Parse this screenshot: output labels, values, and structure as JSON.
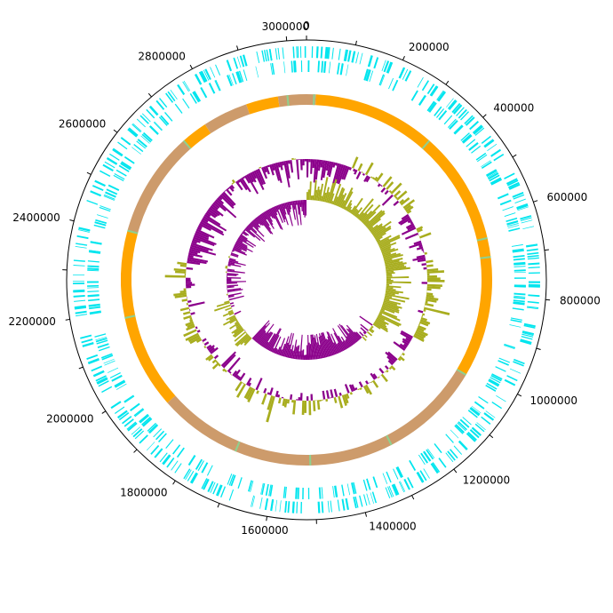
{
  "genome": {
    "length": 3040000,
    "tick_labels": [
      {
        "position": 0,
        "text": "0"
      },
      {
        "position": 200000,
        "text": "200000"
      },
      {
        "position": 400000,
        "text": "400000"
      },
      {
        "position": 600000,
        "text": "600000"
      },
      {
        "position": 800000,
        "text": "800000"
      },
      {
        "position": 1000000,
        "text": "1000000"
      },
      {
        "position": 1200000,
        "text": "1200000"
      },
      {
        "position": 1400000,
        "text": "1400000"
      },
      {
        "position": 1600000,
        "text": "1600000"
      },
      {
        "position": 1800000,
        "text": "1800000"
      },
      {
        "position": 2000000,
        "text": "2000000"
      },
      {
        "position": 2200000,
        "text": "2200000"
      },
      {
        "position": 2400000,
        "text": "2400000"
      },
      {
        "position": 2600000,
        "text": "2600000"
      },
      {
        "position": 2800000,
        "text": "2800000"
      },
      {
        "position": 3000000,
        "text": "3000000"
      }
    ],
    "minor_tick_step": 100000
  },
  "colors": {
    "features": "#00e5ee",
    "contig_a": "#ffa500",
    "contig_b": "#cd9b6b",
    "contig_gap": "#8fd08f",
    "skew_positive": "#a8ad1e",
    "skew_negative": "#8b008b",
    "axis": "#000000"
  },
  "contigs": [
    {
      "start": 0,
      "end": 25000,
      "kind": "b"
    },
    {
      "start": 25000,
      "end": 350000,
      "kind": "a"
    },
    {
      "start": 350000,
      "end": 650000,
      "kind": "a"
    },
    {
      "start": 650000,
      "end": 1020000,
      "kind": "a"
    },
    {
      "start": 1020000,
      "end": 1290000,
      "kind": "b"
    },
    {
      "start": 1290000,
      "end": 1510000,
      "kind": "b"
    },
    {
      "start": 1510000,
      "end": 1710000,
      "kind": "b"
    },
    {
      "start": 1710000,
      "end": 1930000,
      "kind": "b"
    },
    {
      "start": 1930000,
      "end": 2180000,
      "kind": "a"
    },
    {
      "start": 2180000,
      "end": 2410000,
      "kind": "a"
    },
    {
      "start": 2410000,
      "end": 2690000,
      "kind": "b"
    },
    {
      "start": 2690000,
      "end": 2760000,
      "kind": "a"
    },
    {
      "start": 2760000,
      "end": 2880000,
      "kind": "b"
    },
    {
      "start": 2880000,
      "end": 2965000,
      "kind": "a"
    },
    {
      "start": 2965000,
      "end": 3040000,
      "kind": "b"
    }
  ],
  "contig_gaps": [
    20000,
    350000,
    650000,
    700000,
    1020000,
    1290000,
    1510000,
    1710000,
    2180000,
    2410000,
    2690000,
    2990000
  ],
  "feature_tracks": [
    {
      "name": "forward_features",
      "count": 340,
      "seed": 7
    },
    {
      "name": "reverse_features",
      "count": 300,
      "seed": 19
    }
  ],
  "skew_tracks": [
    {
      "name": "gc_content",
      "bins": 360,
      "seed": 3,
      "segments": [
        {
          "start": 0,
          "end": 180000,
          "bias": -0.45
        },
        {
          "start": 180000,
          "end": 480000,
          "bias": 0.1
        },
        {
          "start": 480000,
          "end": 700000,
          "bias": -0.15
        },
        {
          "start": 700000,
          "end": 1000000,
          "bias": 0.2
        },
        {
          "start": 1000000,
          "end": 1120000,
          "bias": -0.2
        },
        {
          "start": 1120000,
          "end": 1450000,
          "bias": 0.05
        },
        {
          "start": 1450000,
          "end": 1800000,
          "bias": 0.15
        },
        {
          "start": 1800000,
          "end": 1900000,
          "bias": -0.3
        },
        {
          "start": 1900000,
          "end": 2350000,
          "bias": 0.1
        },
        {
          "start": 2350000,
          "end": 2560000,
          "bias": -0.5
        },
        {
          "start": 2560000,
          "end": 2760000,
          "bias": -0.25
        },
        {
          "start": 2760000,
          "end": 3040000,
          "bias": -0.35
        }
      ]
    },
    {
      "name": "gc_skew",
      "bins": 360,
      "seed": 11,
      "segments": [
        {
          "start": 0,
          "end": 1050000,
          "bias": 0.55
        },
        {
          "start": 1050000,
          "end": 1150000,
          "bias": -0.2
        },
        {
          "start": 1150000,
          "end": 1350000,
          "bias": -0.7
        },
        {
          "start": 1350000,
          "end": 1520000,
          "bias": -0.85
        },
        {
          "start": 1520000,
          "end": 1880000,
          "bias": -0.6
        },
        {
          "start": 1880000,
          "end": 2150000,
          "bias": 0.25
        },
        {
          "start": 2150000,
          "end": 2500000,
          "bias": -0.35
        },
        {
          "start": 2500000,
          "end": 2700000,
          "bias": -0.5
        },
        {
          "start": 2700000,
          "end": 3040000,
          "bias": -0.6
        }
      ]
    }
  ]
}
